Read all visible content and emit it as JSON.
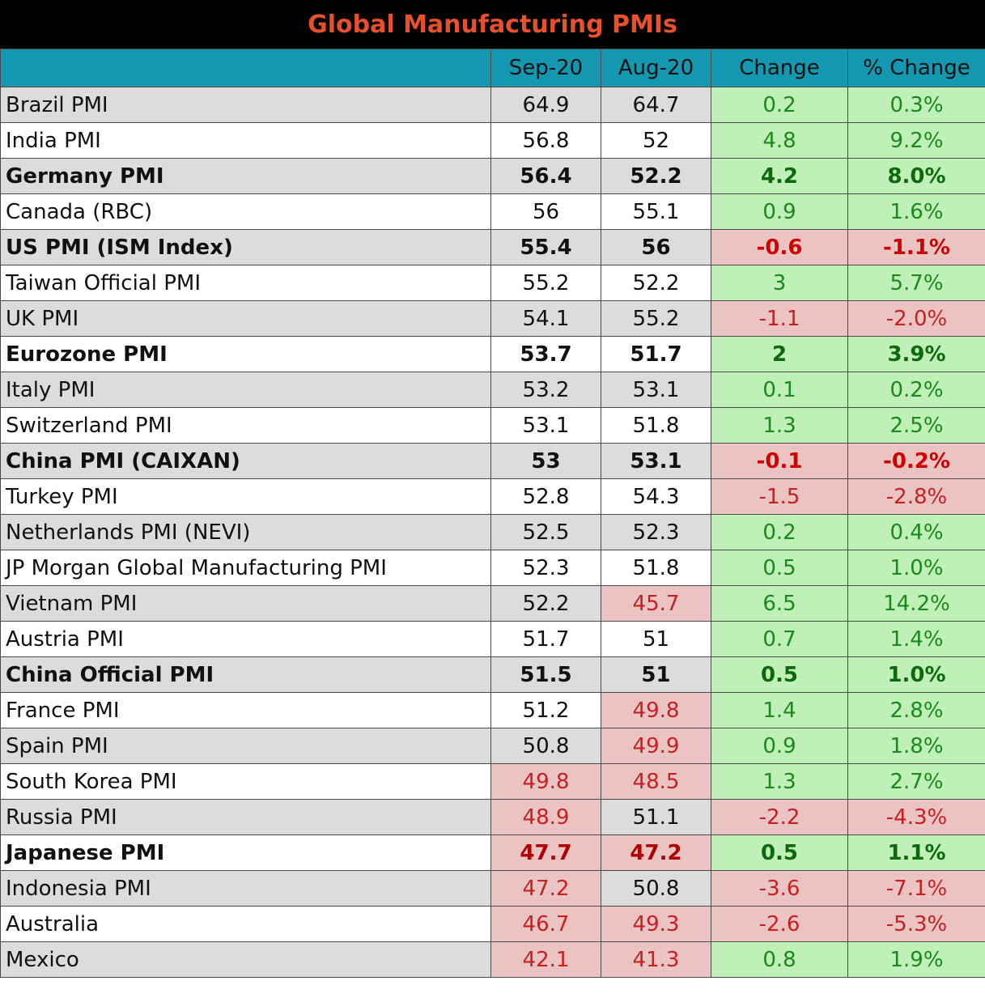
{
  "title": "Global Manufacturing PMIs",
  "colors": {
    "header_bg": "#1497b0",
    "title_text": "#e8502b",
    "positive_bg": "#bff0b8",
    "positive_text": "#1a8a1a",
    "negative_bg": "#ebc3c3",
    "negative_text": "#c82020"
  },
  "chart_data": {
    "type": "table",
    "title": "Global Manufacturing PMIs",
    "columns": [
      "",
      "Sep-20",
      "Aug-20",
      "Change",
      "% Change"
    ],
    "rows": [
      {
        "name": "Brazil PMI",
        "sep": "64.9",
        "aug": "64.7",
        "change": "0.2",
        "pct": "0.3%",
        "bold": false
      },
      {
        "name": "India PMI",
        "sep": "56.8",
        "aug": "52",
        "change": "4.8",
        "pct": "9.2%",
        "bold": false
      },
      {
        "name": "Germany PMI",
        "sep": "56.4",
        "aug": "52.2",
        "change": "4.2",
        "pct": "8.0%",
        "bold": true
      },
      {
        "name": "Canada (RBC)",
        "sep": "56",
        "aug": "55.1",
        "change": "0.9",
        "pct": "1.6%",
        "bold": false
      },
      {
        "name": "US PMI (ISM Index)",
        "sep": "55.4",
        "aug": "56",
        "change": "-0.6",
        "pct": "-1.1%",
        "bold": true
      },
      {
        "name": "Taiwan Official PMI",
        "sep": "55.2",
        "aug": "52.2",
        "change": "3",
        "pct": "5.7%",
        "bold": false
      },
      {
        "name": "UK PMI",
        "sep": "54.1",
        "aug": "55.2",
        "change": "-1.1",
        "pct": "-2.0%",
        "bold": false
      },
      {
        "name": "Eurozone PMI",
        "sep": "53.7",
        "aug": "51.7",
        "change": "2",
        "pct": "3.9%",
        "bold": true
      },
      {
        "name": "Italy PMI",
        "sep": "53.2",
        "aug": "53.1",
        "change": "0.1",
        "pct": "0.2%",
        "bold": false
      },
      {
        "name": "Switzerland PMI",
        "sep": "53.1",
        "aug": "51.8",
        "change": "1.3",
        "pct": "2.5%",
        "bold": false
      },
      {
        "name": "China PMI (CAIXAN)",
        "sep": "53",
        "aug": "53.1",
        "change": "-0.1",
        "pct": "-0.2%",
        "bold": true
      },
      {
        "name": "Turkey PMI",
        "sep": "52.8",
        "aug": "54.3",
        "change": "-1.5",
        "pct": "-2.8%",
        "bold": false
      },
      {
        "name": "Netherlands PMI (NEVI)",
        "sep": "52.5",
        "aug": "52.3",
        "change": "0.2",
        "pct": "0.4%",
        "bold": false
      },
      {
        "name": "JP Morgan Global Manufacturing PMI",
        "sep": "52.3",
        "aug": "51.8",
        "change": "0.5",
        "pct": "1.0%",
        "bold": false
      },
      {
        "name": "Vietnam PMI",
        "sep": "52.2",
        "aug": "45.7",
        "change": "6.5",
        "pct": "14.2%",
        "bold": false
      },
      {
        "name": "Austria PMI",
        "sep": "51.7",
        "aug": "51",
        "change": "0.7",
        "pct": "1.4%",
        "bold": false
      },
      {
        "name": "China Official PMI",
        "sep": "51.5",
        "aug": "51",
        "change": "0.5",
        "pct": "1.0%",
        "bold": true
      },
      {
        "name": "France PMI",
        "sep": "51.2",
        "aug": "49.8",
        "change": "1.4",
        "pct": "2.8%",
        "bold": false
      },
      {
        "name": "Spain PMI",
        "sep": "50.8",
        "aug": "49.9",
        "change": "0.9",
        "pct": "1.8%",
        "bold": false
      },
      {
        "name": "South Korea PMI",
        "sep": "49.8",
        "aug": "48.5",
        "change": "1.3",
        "pct": "2.7%",
        "bold": false
      },
      {
        "name": "Russia PMI",
        "sep": "48.9",
        "aug": "51.1",
        "change": "-2.2",
        "pct": "-4.3%",
        "bold": false
      },
      {
        "name": "Japanese PMI",
        "sep": "47.7",
        "aug": "47.2",
        "change": "0.5",
        "pct": "1.1%",
        "bold": true
      },
      {
        "name": "Indonesia PMI",
        "sep": "47.2",
        "aug": "50.8",
        "change": "-3.6",
        "pct": "-7.1%",
        "bold": false
      },
      {
        "name": "Australia",
        "sep": "46.7",
        "aug": "49.3",
        "change": "-2.6",
        "pct": "-5.3%",
        "bold": false
      },
      {
        "name": "Mexico",
        "sep": "42.1",
        "aug": "41.3",
        "change": "0.8",
        "pct": "1.9%",
        "bold": false
      }
    ]
  }
}
